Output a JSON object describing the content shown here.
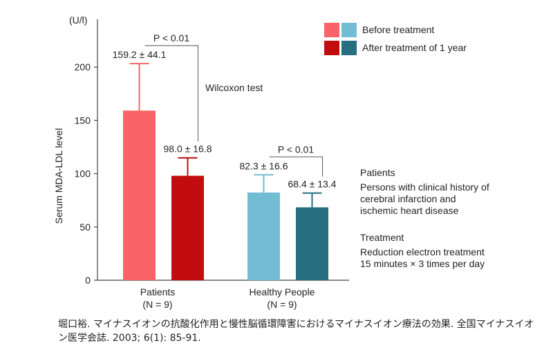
{
  "chart_data": {
    "type": "bar",
    "unit_label": "(U/l)",
    "ylabel": "Serum MDA-LDL level",
    "ylim": [
      0,
      230
    ],
    "yticks": [
      0,
      50,
      100,
      150,
      200
    ],
    "groups": [
      {
        "name": "Patients",
        "n_label": "(N = 9)",
        "bars": [
          {
            "series": "Before treatment",
            "value": 159.2,
            "sd": 44.1,
            "label": "159.2 ± 44.1",
            "color": "#fa6468"
          },
          {
            "series": "After treatment of 1 year",
            "value": 98.0,
            "sd": 16.8,
            "label": "98.0 ± 16.8",
            "color": "#c10d10"
          }
        ],
        "p_value": "P < 0.01"
      },
      {
        "name": "Healthy People",
        "n_label": "(N = 9)",
        "bars": [
          {
            "series": "Before treatment",
            "value": 82.3,
            "sd": 16.6,
            "label": "82.3 ± 16.6",
            "color": "#72bdd4"
          },
          {
            "series": "After treatment of 1 year",
            "value": 68.4,
            "sd": 13.4,
            "label": "68.4 ± 13.4",
            "color": "#266e80"
          }
        ],
        "p_value": "P < 0.01"
      }
    ],
    "legend": [
      {
        "label": "Before treatment",
        "colors": [
          "#fa6468",
          "#72bdd4"
        ]
      },
      {
        "label": "After treatment of 1 year",
        "colors": [
          "#c10d10",
          "#266e80"
        ]
      }
    ],
    "annotation": "Wilcoxon test"
  },
  "notes": {
    "patients_title": "Patients",
    "patients_desc": [
      "Persons with clinical history of",
      "cerebral infarction and",
      "ischemic heart disease"
    ],
    "treatment_title": "Treatment",
    "treatment_desc": [
      "Reduction electron treatment",
      "15 minutes × 3 times per day"
    ]
  },
  "footer": {
    "citation": "堀口裕. マイナスイオンの抗酸化作用と慢性脳循環障害におけるマイナスイオン療法の効果. 全国マイナスイオン医学会誌. 2003; 6(1): 85-91."
  }
}
